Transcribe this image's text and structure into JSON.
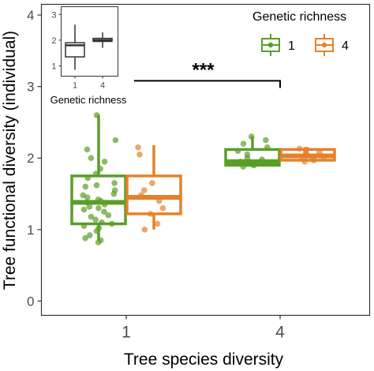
{
  "chart_data": [
    {
      "type": "boxplot",
      "xlabel": "Tree species diversity",
      "ylabel": "Tree functional diversity (individual)",
      "categories": [
        "1",
        "4"
      ],
      "y_ticks": [
        "0",
        "1",
        "2",
        "3",
        "4"
      ],
      "ylim": [
        -0.2,
        4.15
      ],
      "grid": false,
      "legend": {
        "title": "Genetic richness",
        "position": "top-right",
        "entries": [
          "1",
          "4"
        ]
      },
      "colors": {
        "1": "#5a9e28",
        "4": "#e5812b"
      },
      "annotation": {
        "text": "***",
        "from_category": "1",
        "to_category": "4",
        "y": 3.08
      },
      "series": [
        {
          "name": "1",
          "boxes": [
            {
              "category": "1",
              "whisker_low": 0.85,
              "q1": 1.08,
              "median": 1.38,
              "q3": 1.75,
              "whisker_high": 2.6
            },
            {
              "category": "4",
              "whisker_low": 1.87,
              "q1": 1.9,
              "median": 1.95,
              "q3": 2.12,
              "whisker_high": 2.3
            }
          ],
          "points": [
            {
              "category": "1",
              "values": [
                0.82,
                0.85,
                0.88,
                0.92,
                0.98,
                1.02,
                1.05,
                1.08,
                1.1,
                1.14,
                1.18,
                1.2,
                1.25,
                1.28,
                1.3,
                1.32,
                1.35,
                1.38,
                1.4,
                1.42,
                1.45,
                1.48,
                1.5,
                1.55,
                1.6,
                1.62,
                1.65,
                1.72,
                1.78,
                1.85,
                1.95,
                2.0,
                2.12,
                2.25,
                2.6
              ]
            },
            {
              "category": "4",
              "values": [
                1.88,
                1.9,
                1.92,
                1.95,
                1.98,
                2.0,
                2.05,
                2.1,
                2.15,
                2.2,
                2.25,
                2.3
              ]
            }
          ]
        },
        {
          "name": "4",
          "boxes": [
            {
              "category": "1",
              "whisker_low": 1.0,
              "q1": 1.22,
              "median": 1.45,
              "q3": 1.75,
              "whisker_high": 2.18
            },
            {
              "category": "4",
              "whisker_low": 1.95,
              "q1": 1.97,
              "median": 2.03,
              "q3": 2.12,
              "whisker_high": 2.15
            }
          ],
          "points": [
            {
              "category": "1",
              "values": [
                1.0,
                1.08,
                1.22,
                1.3,
                1.4,
                1.48,
                1.55,
                1.65,
                2.05,
                2.15
              ]
            },
            {
              "category": "4",
              "values": [
                1.95,
                1.97,
                1.98,
                2.0,
                2.02,
                2.03,
                2.04,
                2.06,
                2.08,
                2.1,
                2.12,
                2.13
              ]
            }
          ]
        }
      ]
    },
    {
      "type": "boxplot",
      "xlabel": "Genetic richness",
      "ylabel": "",
      "categories": [
        "1",
        "4"
      ],
      "y_ticks": [
        "1",
        "2",
        "3"
      ],
      "ylim": [
        0.6,
        3.3
      ],
      "grid": false,
      "boxes": [
        {
          "category": "1",
          "whisker_low": 0.85,
          "q1": 1.35,
          "median": 1.8,
          "q3": 1.9,
          "whisker_high": 2.6
        },
        {
          "category": "4",
          "whisker_low": 1.7,
          "q1": 1.95,
          "median": 2.0,
          "q3": 2.07,
          "whisker_high": 2.3
        }
      ]
    }
  ]
}
